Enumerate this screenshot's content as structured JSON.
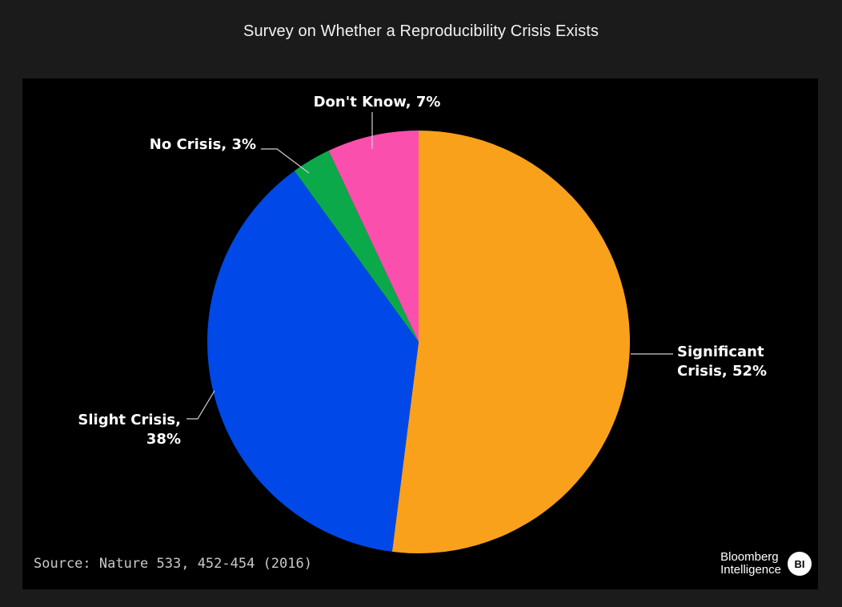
{
  "title": "Survey on Whether a Reproducibility Crisis Exists",
  "source": "Source: Nature 533, 452-454 (2016)",
  "brand": {
    "line1": "Bloomberg",
    "line2": "Intelligence",
    "badge": "BI"
  },
  "chart_data": {
    "type": "pie",
    "title": "Survey on Whether a Reproducibility Crisis Exists",
    "slices": [
      {
        "label": "Significant Crisis",
        "display": [
          "Significant",
          "Crisis, 52%"
        ],
        "value": 52,
        "color": "#f9a11b"
      },
      {
        "label": "Slight Crisis",
        "display": [
          "Slight Crisis,",
          "38%"
        ],
        "value": 38,
        "color": "#0048e8"
      },
      {
        "label": "No Crisis",
        "display": [
          "No Crisis, 3%"
        ],
        "value": 3,
        "color": "#0ca94a"
      },
      {
        "label": "Don't Know",
        "display": [
          "Don't Know, 7%"
        ],
        "value": 7,
        "color": "#fb4fae"
      }
    ],
    "start_angle_deg": 0,
    "direction": "clockwise",
    "legend": "none"
  }
}
